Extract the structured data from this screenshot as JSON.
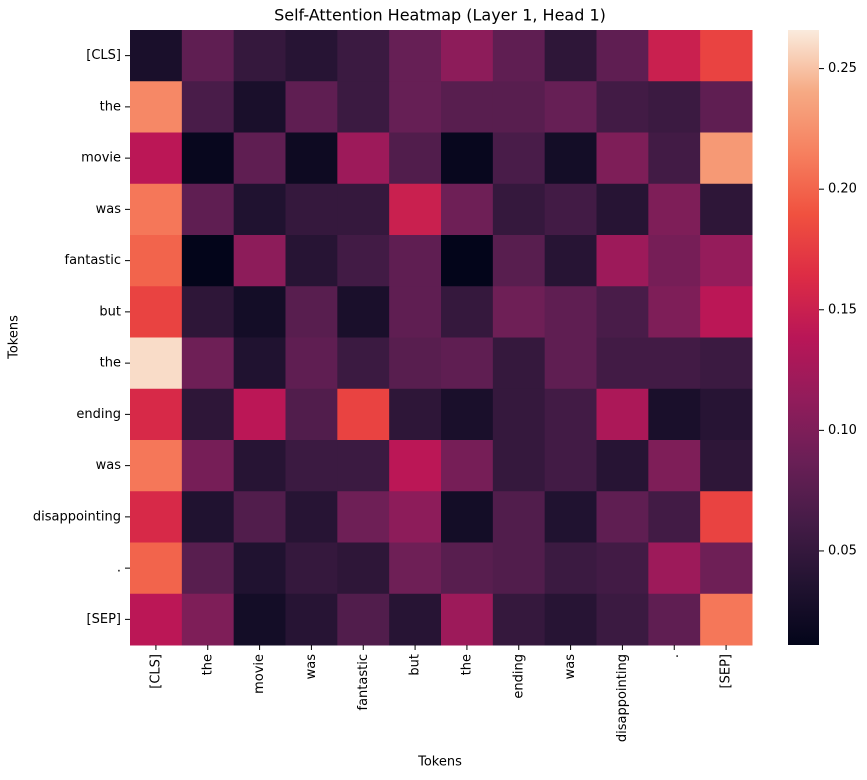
{
  "chart_data": {
    "type": "heatmap",
    "title": "Self-Attention Heatmap (Layer 1, Head 1)",
    "x_label": "Tokens",
    "y_label": "Tokens",
    "x_categories": [
      "[CLS]",
      "the",
      "movie",
      "was",
      "fantastic",
      "but",
      "the",
      "ending",
      "was",
      "disappointing",
      ".",
      "[SEP]"
    ],
    "y_categories": [
      "[CLS]",
      "the",
      "movie",
      "was",
      "fantastic",
      "but",
      "the",
      "ending",
      "was",
      "disappointing",
      ".",
      "[SEP]"
    ],
    "values": [
      [
        0.03,
        0.08,
        0.05,
        0.04,
        0.055,
        0.085,
        0.11,
        0.08,
        0.045,
        0.08,
        0.15,
        0.18
      ],
      [
        0.22,
        0.065,
        0.03,
        0.08,
        0.055,
        0.085,
        0.075,
        0.075,
        0.085,
        0.06,
        0.055,
        0.08
      ],
      [
        0.14,
        0.015,
        0.08,
        0.02,
        0.12,
        0.07,
        0.015,
        0.065,
        0.025,
        0.1,
        0.06,
        0.23
      ],
      [
        0.21,
        0.08,
        0.035,
        0.05,
        0.05,
        0.15,
        0.09,
        0.05,
        0.06,
        0.04,
        0.1,
        0.045
      ],
      [
        0.2,
        0.011,
        0.11,
        0.04,
        0.06,
        0.08,
        0.011,
        0.075,
        0.04,
        0.12,
        0.095,
        0.115
      ],
      [
        0.18,
        0.045,
        0.025,
        0.075,
        0.03,
        0.08,
        0.05,
        0.09,
        0.08,
        0.065,
        0.1,
        0.14
      ],
      [
        0.26,
        0.09,
        0.035,
        0.08,
        0.055,
        0.075,
        0.08,
        0.05,
        0.08,
        0.06,
        0.06,
        0.055
      ],
      [
        0.16,
        0.045,
        0.14,
        0.07,
        0.18,
        0.045,
        0.03,
        0.05,
        0.06,
        0.13,
        0.03,
        0.04
      ],
      [
        0.21,
        0.095,
        0.04,
        0.055,
        0.055,
        0.14,
        0.095,
        0.05,
        0.06,
        0.04,
        0.1,
        0.045
      ],
      [
        0.16,
        0.035,
        0.07,
        0.04,
        0.09,
        0.11,
        0.025,
        0.07,
        0.035,
        0.08,
        0.06,
        0.18
      ],
      [
        0.2,
        0.075,
        0.035,
        0.05,
        0.045,
        0.09,
        0.075,
        0.07,
        0.055,
        0.06,
        0.12,
        0.09
      ],
      [
        0.14,
        0.1,
        0.025,
        0.04,
        0.07,
        0.04,
        0.12,
        0.05,
        0.04,
        0.055,
        0.08,
        0.21
      ]
    ],
    "colorscale": [
      "#03051A",
      "#221331",
      "#451C47",
      "#6A1F56",
      "#921C5B",
      "#B91657",
      "#DD2C45",
      "#F0513F",
      "#F6805F",
      "#F6AA84",
      "#FAEBDD"
    ],
    "clim": [
      0.011,
      0.266
    ],
    "cticks": [
      0.05,
      {
        "value": 0.1,
        "label": "0.10"
      },
      0.15,
      {
        "value": 0.2,
        "label": "0.20"
      },
      0.25
    ]
  }
}
